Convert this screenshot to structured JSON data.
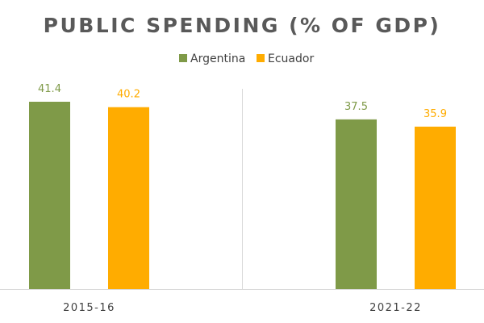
{
  "chart_data": {
    "type": "bar",
    "title": "PUBLIC SPENDING (% OF GDP)",
    "categories": [
      "2015-16",
      "2021-22"
    ],
    "series": [
      {
        "name": "Argentina",
        "values": [
          41.4,
          37.5
        ],
        "color": "#7f9a48"
      },
      {
        "name": "Ecuador",
        "values": [
          40.2,
          35.9
        ],
        "color": "#ffac00"
      }
    ],
    "ylim": [
      0,
      41.4
    ],
    "xlabel": "",
    "ylabel": "",
    "legend_position": "top-center",
    "grid": false,
    "category_separator": true
  }
}
